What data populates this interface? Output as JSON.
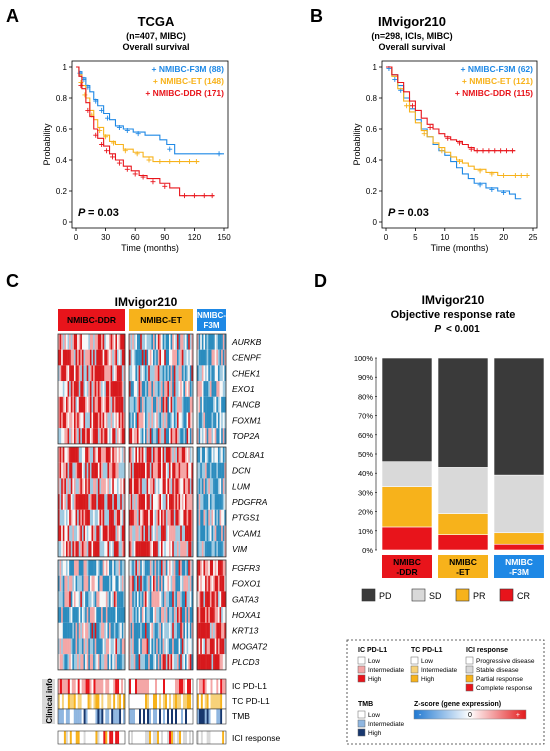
{
  "colors": {
    "ddr": "#e8141b",
    "et": "#f7b21b",
    "f3m": "#1e88e5",
    "pd": "#3a3a3a",
    "sd": "#d9d9d9",
    "pr": "#f7b21b",
    "cr": "#e8141b"
  },
  "chart_data": [
    {
      "panel": "A",
      "type": "line",
      "title": "TCGA",
      "subtitle1": "(n=407, MIBC)",
      "subtitle2": "Overall survival",
      "xlabel": "Time (months)",
      "ylabel": "Probability",
      "xlim": [
        0,
        150
      ],
      "ylim": [
        0,
        1
      ],
      "xticks": [
        "0",
        "30",
        "60",
        "90",
        "120",
        "150"
      ],
      "yticks": [
        "0",
        "0.2",
        "0.4",
        "0.6",
        "0.8",
        "1"
      ],
      "pvalue_label": "P",
      "pvalue": "= 0.03",
      "legend": [
        "+ NMIBC-F3M (88)",
        "+ NMIBC-ET (148)",
        "+ NMIBC-DDR (171)"
      ],
      "series": [
        {
          "name": "NMIBC-F3M",
          "color": "#1e88e5",
          "points": [
            [
              0,
              1
            ],
            [
              3,
              0.97
            ],
            [
              6,
              0.93
            ],
            [
              10,
              0.88
            ],
            [
              14,
              0.84
            ],
            [
              18,
              0.79
            ],
            [
              22,
              0.75
            ],
            [
              28,
              0.7
            ],
            [
              34,
              0.66
            ],
            [
              40,
              0.62
            ],
            [
              48,
              0.6
            ],
            [
              58,
              0.58
            ],
            [
              70,
              0.56
            ],
            [
              85,
              0.53
            ],
            [
              92,
              0.5
            ],
            [
              100,
              0.44
            ],
            [
              150,
              0.44
            ]
          ],
          "censors": [
            [
              4,
              0.96
            ],
            [
              8,
              0.92
            ],
            [
              12,
              0.87
            ],
            [
              20,
              0.78
            ],
            [
              26,
              0.72
            ],
            [
              32,
              0.67
            ],
            [
              44,
              0.61
            ],
            [
              52,
              0.59
            ],
            [
              63,
              0.57
            ],
            [
              95,
              0.47
            ],
            [
              145,
              0.44
            ]
          ]
        },
        {
          "name": "NMIBC-ET",
          "color": "#f7b21b",
          "points": [
            [
              0,
              1
            ],
            [
              3,
              0.95
            ],
            [
              6,
              0.88
            ],
            [
              10,
              0.8
            ],
            [
              14,
              0.72
            ],
            [
              18,
              0.66
            ],
            [
              22,
              0.61
            ],
            [
              28,
              0.56
            ],
            [
              34,
              0.52
            ],
            [
              40,
              0.5
            ],
            [
              48,
              0.47
            ],
            [
              58,
              0.45
            ],
            [
              68,
              0.42
            ],
            [
              78,
              0.39
            ],
            [
              125,
              0.39
            ]
          ],
          "censors": [
            [
              5,
              0.9
            ],
            [
              9,
              0.82
            ],
            [
              16,
              0.69
            ],
            [
              24,
              0.59
            ],
            [
              30,
              0.55
            ],
            [
              38,
              0.51
            ],
            [
              50,
              0.46
            ],
            [
              62,
              0.44
            ],
            [
              74,
              0.4
            ],
            [
              85,
              0.39
            ],
            [
              95,
              0.39
            ],
            [
              105,
              0.39
            ],
            [
              115,
              0.39
            ],
            [
              122,
              0.39
            ]
          ]
        },
        {
          "name": "NMIBC-DDR",
          "color": "#e8141b",
          "points": [
            [
              0,
              1
            ],
            [
              3,
              0.94
            ],
            [
              6,
              0.86
            ],
            [
              10,
              0.77
            ],
            [
              14,
              0.68
            ],
            [
              18,
              0.6
            ],
            [
              22,
              0.54
            ],
            [
              28,
              0.49
            ],
            [
              34,
              0.44
            ],
            [
              40,
              0.4
            ],
            [
              48,
              0.36
            ],
            [
              56,
              0.33
            ],
            [
              64,
              0.3
            ],
            [
              72,
              0.28
            ],
            [
              85,
              0.25
            ],
            [
              95,
              0.22
            ],
            [
              105,
              0.17
            ],
            [
              140,
              0.17
            ]
          ],
          "censors": [
            [
              5,
              0.88
            ],
            [
              12,
              0.72
            ],
            [
              20,
              0.56
            ],
            [
              26,
              0.5
            ],
            [
              31,
              0.46
            ],
            [
              37,
              0.42
            ],
            [
              44,
              0.38
            ],
            [
              52,
              0.34
            ],
            [
              60,
              0.31
            ],
            [
              68,
              0.29
            ],
            [
              78,
              0.26
            ],
            [
              90,
              0.23
            ],
            [
              110,
              0.17
            ],
            [
              120,
              0.17
            ],
            [
              130,
              0.17
            ],
            [
              138,
              0.17
            ]
          ]
        }
      ]
    },
    {
      "panel": "B",
      "type": "line",
      "title": "IMvigor210",
      "subtitle1": "(n=298, ICIs, MIBC)",
      "subtitle2": "Overall survival",
      "xlabel": "Time (months)",
      "ylabel": "Probability",
      "xlim": [
        0,
        25
      ],
      "ylim": [
        0,
        1
      ],
      "xticks": [
        "0",
        "5",
        "10",
        "15",
        "20",
        "25"
      ],
      "yticks": [
        "0",
        "0.2",
        "0.4",
        "0.6",
        "0.8",
        "1"
      ],
      "pvalue_label": "P",
      "pvalue": "= 0.03",
      "legend": [
        "+ NMIBC-F3M (62)",
        "+ NMIBC-ET (121)",
        "+ NMIBC-DDR (115)"
      ],
      "series": [
        {
          "name": "NMIBC-F3M",
          "color": "#1e88e5",
          "points": [
            [
              0,
              1
            ],
            [
              1,
              0.95
            ],
            [
              2,
              0.88
            ],
            [
              3,
              0.8
            ],
            [
              4,
              0.73
            ],
            [
              5,
              0.66
            ],
            [
              6,
              0.6
            ],
            [
              7,
              0.55
            ],
            [
              8,
              0.5
            ],
            [
              9,
              0.46
            ],
            [
              10,
              0.43
            ],
            [
              11,
              0.39
            ],
            [
              12,
              0.35
            ],
            [
              13,
              0.31
            ],
            [
              14,
              0.28
            ],
            [
              15,
              0.25
            ],
            [
              17,
              0.22
            ],
            [
              19,
              0.2
            ],
            [
              21,
              0.18
            ],
            [
              22,
              0.15
            ],
            [
              23,
              0.15
            ]
          ],
          "censors": [
            [
              0.5,
              0.99
            ],
            [
              1.5,
              0.92
            ],
            [
              2.5,
              0.85
            ],
            [
              16,
              0.24
            ],
            [
              18,
              0.21
            ],
            [
              20,
              0.19
            ]
          ]
        },
        {
          "name": "NMIBC-ET",
          "color": "#f7b21b",
          "points": [
            [
              0,
              1
            ],
            [
              1,
              0.94
            ],
            [
              2,
              0.86
            ],
            [
              3,
              0.78
            ],
            [
              4,
              0.71
            ],
            [
              5,
              0.64
            ],
            [
              6,
              0.59
            ],
            [
              7,
              0.55
            ],
            [
              8,
              0.51
            ],
            [
              9,
              0.48
            ],
            [
              10,
              0.45
            ],
            [
              11,
              0.42
            ],
            [
              12,
              0.4
            ],
            [
              13,
              0.38
            ],
            [
              14,
              0.36
            ],
            [
              15,
              0.34
            ],
            [
              17,
              0.32
            ],
            [
              19,
              0.3
            ],
            [
              21,
              0.3
            ],
            [
              24,
              0.3
            ]
          ],
          "censors": [
            [
              3.5,
              0.75
            ],
            [
              6.5,
              0.57
            ],
            [
              9.5,
              0.46
            ],
            [
              12.5,
              0.39
            ],
            [
              16,
              0.33
            ],
            [
              18,
              0.31
            ],
            [
              20,
              0.3
            ],
            [
              22,
              0.3
            ],
            [
              23,
              0.3
            ],
            [
              24,
              0.3
            ]
          ]
        },
        {
          "name": "NMIBC-DDR",
          "color": "#e8141b",
          "points": [
            [
              0,
              1
            ],
            [
              1,
              0.95
            ],
            [
              2,
              0.9
            ],
            [
              3,
              0.84
            ],
            [
              4,
              0.78
            ],
            [
              5,
              0.72
            ],
            [
              6,
              0.67
            ],
            [
              7,
              0.63
            ],
            [
              8,
              0.6
            ],
            [
              9,
              0.57
            ],
            [
              10,
              0.55
            ],
            [
              11,
              0.53
            ],
            [
              12,
              0.52
            ],
            [
              13,
              0.5
            ],
            [
              14,
              0.48
            ],
            [
              15,
              0.46
            ],
            [
              17,
              0.46
            ],
            [
              20,
              0.46
            ],
            [
              22,
              0.46
            ]
          ],
          "censors": [
            [
              4.5,
              0.75
            ],
            [
              7.5,
              0.61
            ],
            [
              10.5,
              0.54
            ],
            [
              12.5,
              0.51
            ],
            [
              14.5,
              0.47
            ],
            [
              15.5,
              0.46
            ],
            [
              16.5,
              0.46
            ],
            [
              17.5,
              0.46
            ],
            [
              18.5,
              0.46
            ],
            [
              19.5,
              0.46
            ],
            [
              20.5,
              0.46
            ],
            [
              21.5,
              0.46
            ]
          ]
        }
      ]
    },
    {
      "panel": "C",
      "type": "heatmap",
      "title": "IMvigor210",
      "groups": [
        {
          "label": "NMIBC-DDR",
          "color": "#e8141b",
          "label_color": "#000"
        },
        {
          "label": "NMIBC-ET",
          "color": "#f7b21b",
          "label_color": "#000"
        },
        {
          "label": "NMIBC-F3M",
          "color": "#1e88e5",
          "label_color": "#ffffff"
        }
      ],
      "gene_blocks": [
        [
          "AURKB",
          "CENPF",
          "CHEK1",
          "EXO1",
          "FANCB",
          "FOXM1",
          "TOP2A"
        ],
        [
          "COL8A1",
          "DCN",
          "LUM",
          "PDGFRA",
          "PTGS1",
          "VCAM1",
          "VIM"
        ],
        [
          "FGFR3",
          "FOXO1",
          "GATA3",
          "HOXA1",
          "KRT13",
          "MOGAT2",
          "PLCD3"
        ]
      ],
      "clinical_rows": [
        "IC PD-L1",
        "TC PD-L1",
        "TMB"
      ],
      "clinical_label": "Clinical info",
      "response_row": "ICI response"
    },
    {
      "panel": "D",
      "type": "bar",
      "stacked": true,
      "title": "IMvigor210",
      "subtitle": "Objective response rate",
      "pvalue_label": "P",
      "pvalue": "< 0.001",
      "categories": [
        "NMIBC-DDR",
        "NMIBC-ET",
        "NMIBC-F3M"
      ],
      "category_lines": [
        [
          "NMIBC",
          "-DDR"
        ],
        [
          "NMIBC",
          "-ET"
        ],
        [
          "NMIBC",
          "-F3M"
        ]
      ],
      "ylim": [
        0,
        100
      ],
      "yticks": [
        "0%",
        "10%",
        "20%",
        "30%",
        "40%",
        "50%",
        "60%",
        "70%",
        "80%",
        "90%",
        "100%"
      ],
      "series": [
        {
          "name": "CR",
          "values": [
            12,
            8,
            3
          ]
        },
        {
          "name": "PR",
          "values": [
            21,
            11,
            6
          ]
        },
        {
          "name": "SD",
          "values": [
            13,
            24,
            30
          ]
        },
        {
          "name": "PD",
          "values": [
            54,
            57,
            61
          ]
        }
      ],
      "legend": [
        "PD",
        "SD",
        "PR",
        "CR"
      ]
    }
  ],
  "legend_box": {
    "ic_title": "IC PD-L1",
    "ic_items": [
      "Low",
      "Intermediate",
      "High"
    ],
    "tc_title": "TC PD-L1",
    "tc_items": [
      "Low",
      "Intermediate",
      "High"
    ],
    "ici_title": "ICI response",
    "ici_items": [
      "Progressive disease",
      "Stable disease",
      "Partial response",
      "Complete response"
    ],
    "tmb_title": "TMB",
    "tmb_items": [
      "Low",
      "Intermediate",
      "High"
    ],
    "z_title": "Z-score (gene expression)",
    "z_min": "-",
    "z_mid": "0",
    "z_max": "+"
  },
  "panel_letters": [
    "A",
    "B",
    "C",
    "D"
  ]
}
